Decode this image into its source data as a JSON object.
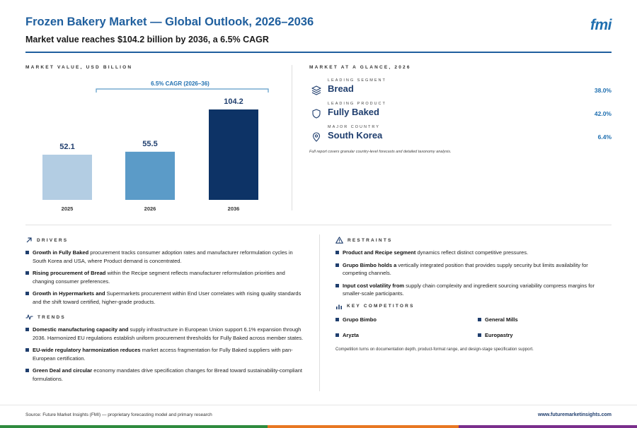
{
  "header": {
    "title": "Frozen Bakery Market — Global Outlook, 2026–2036",
    "subtitle": "Market value reaches $104.2 billion by 2036, a 6.5% CAGR",
    "logo": "fmi"
  },
  "chart_section_label": "MARKET VALUE, USD BILLION",
  "chart_data": {
    "type": "bar",
    "categories": [
      "2025",
      "2026",
      "2036"
    ],
    "values": [
      52.1,
      55.5,
      104.2
    ],
    "value_labels": [
      "52.1",
      "55.5",
      "104.2"
    ],
    "colors": [
      "#b3cde3",
      "#5b9bc8",
      "#0d3366"
    ],
    "annotation": "6.5% CAGR (2026–36)",
    "ylim": [
      0,
      104.2
    ]
  },
  "glance": {
    "label": "MARKET AT A GLANCE, 2026",
    "items": [
      {
        "kicker": "LEADING SEGMENT",
        "value": "Bread",
        "pct": "38.0%",
        "icon": "layers-icon"
      },
      {
        "kicker": "LEADING PRODUCT",
        "value": "Fully Baked",
        "pct": "42.0%",
        "icon": "shield-icon"
      },
      {
        "kicker": "MAJOR COUNTRY",
        "value": "South Korea",
        "pct": "6.4%",
        "icon": "location-pin-icon"
      }
    ],
    "note": "Full report covers granular country-level forecasts and detailed taxonomy analysis."
  },
  "drivers": {
    "label": "DRIVERS",
    "items": [
      {
        "bold": "Growth in Fully Baked",
        "text": " procurement tracks consumer adoption rates and manufacturer reformulation cycles in South Korea and USA, where Product demand is concentrated."
      },
      {
        "bold": "Rising procurement of Bread",
        "text": " within the Recipe segment reflects manufacturer reformulation priorities and changing consumer preferences."
      },
      {
        "bold": "Growth in Hypermarkets and",
        "text": " Supermarkets procurement within End User correlates with rising quality standards and the shift toward certified, higher-grade products."
      }
    ]
  },
  "trends": {
    "label": "TRENDS",
    "items": [
      {
        "bold": "Domestic manufacturing capacity and",
        "text": " supply infrastructure in European Union support 6.1% expansion through 2036. Harmonized EU regulations establish uniform procurement thresholds for Fully Baked across member states."
      },
      {
        "bold": "EU-wide regulatory harmonization reduces",
        "text": " market access fragmentation for Fully Baked suppliers with pan-European certification."
      },
      {
        "bold": "Green Deal and circular",
        "text": " economy mandates drive specification changes for Bread toward sustainability-compliant formulations."
      }
    ]
  },
  "restraints": {
    "label": "RESTRAINTS",
    "items": [
      {
        "bold": "Product and Recipe segment",
        "text": " dynamics reflect distinct competitive pressures."
      },
      {
        "bold": "Grupo Bimbo holds a",
        "text": " vertically integrated position that provides supply security but limits availability for competing channels."
      },
      {
        "bold": "Input cost volatility from",
        "text": " supply chain complexity and ingredient sourcing variability compress margins for smaller-scale participants."
      }
    ]
  },
  "competitors": {
    "label": "KEY COMPETITORS",
    "names": [
      "Grupo Bimbo",
      "General Mills",
      "Aryzta",
      "Europastry"
    ],
    "note": "Competition turns on documentation depth, product-format range, and design-stage specification support."
  },
  "footer": {
    "source": "Source: Future Market Insights (FMI) — proprietary forecasting model and primary research",
    "url": "www.futuremarketinsights.com",
    "band_colors": [
      "#2e8b3e",
      "#e87722",
      "#7a2e8c"
    ]
  }
}
